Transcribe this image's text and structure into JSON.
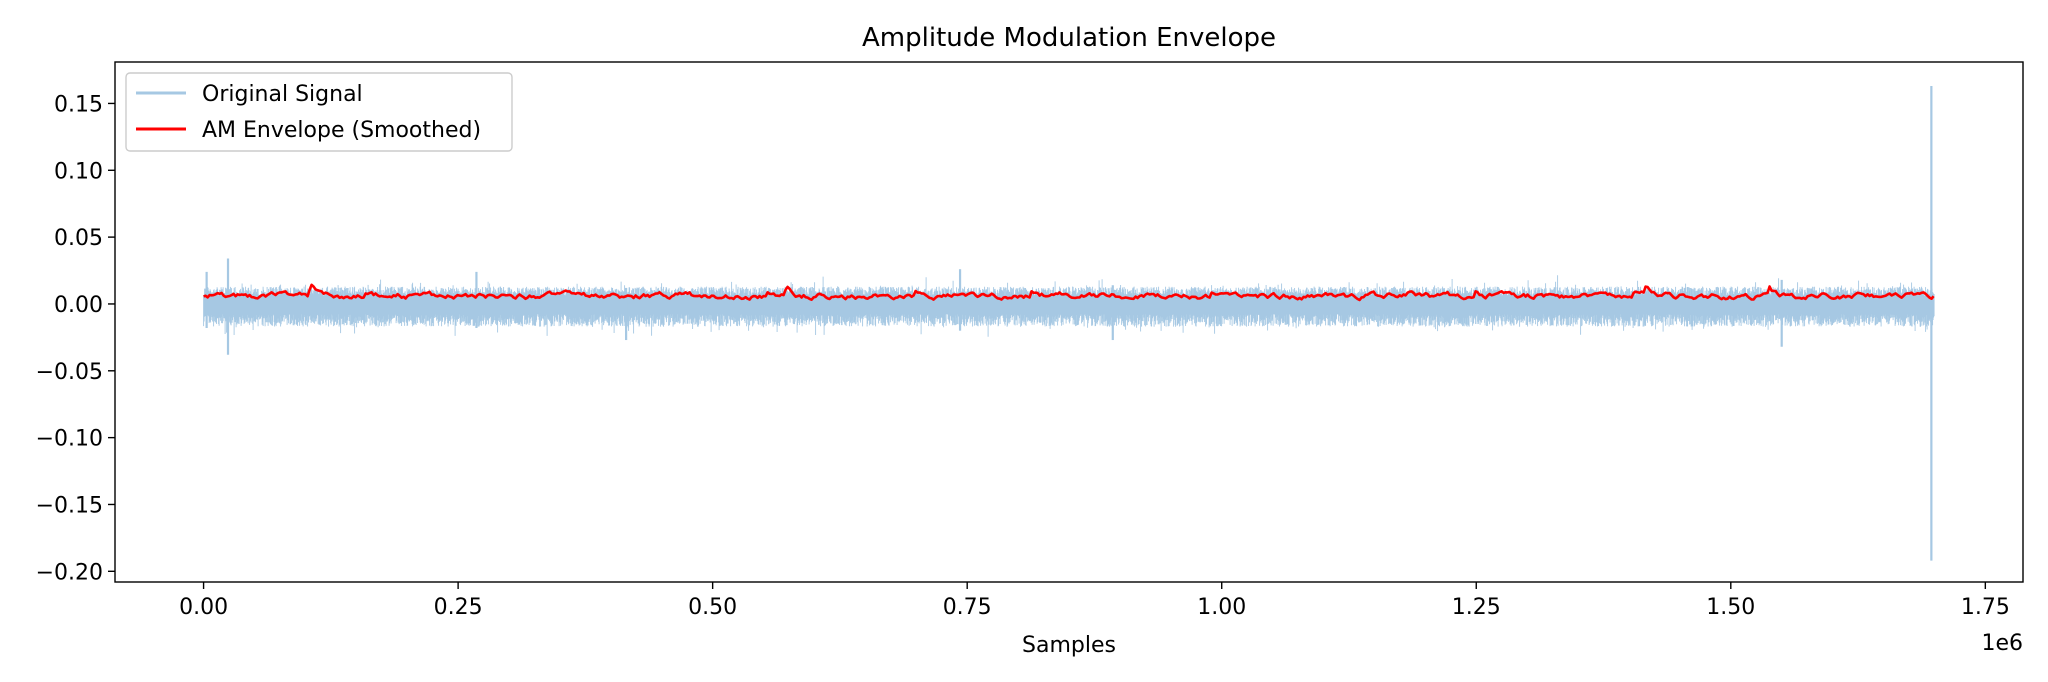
{
  "chart_data": {
    "type": "line",
    "title": "Amplitude Modulation Envelope",
    "xlabel": "Samples",
    "ylabel": "",
    "x_offset_label": "1e6",
    "xlim": [
      -0.087,
      1.787
    ],
    "ylim": [
      -0.208,
      0.181
    ],
    "x_ticks": [
      0.0,
      0.25,
      0.5,
      0.75,
      1.0,
      1.25,
      1.5,
      1.75
    ],
    "x_tick_labels": [
      "0.00",
      "0.25",
      "0.50",
      "0.75",
      "1.00",
      "1.25",
      "1.50",
      "1.75"
    ],
    "y_ticks": [
      0.15,
      0.1,
      0.05,
      0.0,
      -0.05,
      -0.1,
      -0.15,
      -0.2
    ],
    "y_tick_labels": [
      "0.15",
      "0.10",
      "0.05",
      "0.00",
      "−0.05",
      "−0.10",
      "−0.15",
      "−0.20"
    ],
    "grid": false,
    "legend": {
      "position": "upper-left",
      "entries": [
        "Original Signal",
        "AM Envelope (Smoothed)"
      ]
    },
    "series": [
      {
        "name": "Original Signal",
        "color": "#a6c8e3",
        "x_range": [
          0.0,
          1.7
        ],
        "typical_upper": 0.013,
        "typical_lower": -0.017,
        "spikes": [
          {
            "x": 0.003,
            "max": 0.024,
            "min": -0.018
          },
          {
            "x": 0.024,
            "max": 0.034,
            "min": -0.038
          },
          {
            "x": 0.268,
            "max": 0.024,
            "min": -0.018
          },
          {
            "x": 0.415,
            "max": 0.012,
            "min": -0.027
          },
          {
            "x": 0.743,
            "max": 0.026,
            "min": -0.02
          },
          {
            "x": 0.893,
            "max": 0.014,
            "min": -0.027
          },
          {
            "x": 1.55,
            "max": 0.018,
            "min": -0.032
          },
          {
            "x": 1.697,
            "max": 0.163,
            "min": -0.192
          }
        ]
      },
      {
        "name": "AM Envelope (Smoothed)",
        "color": "#ff0000",
        "x_range": [
          0.0,
          1.7
        ],
        "mean": 0.006,
        "min": 0.002,
        "max": 0.016
      }
    ]
  }
}
